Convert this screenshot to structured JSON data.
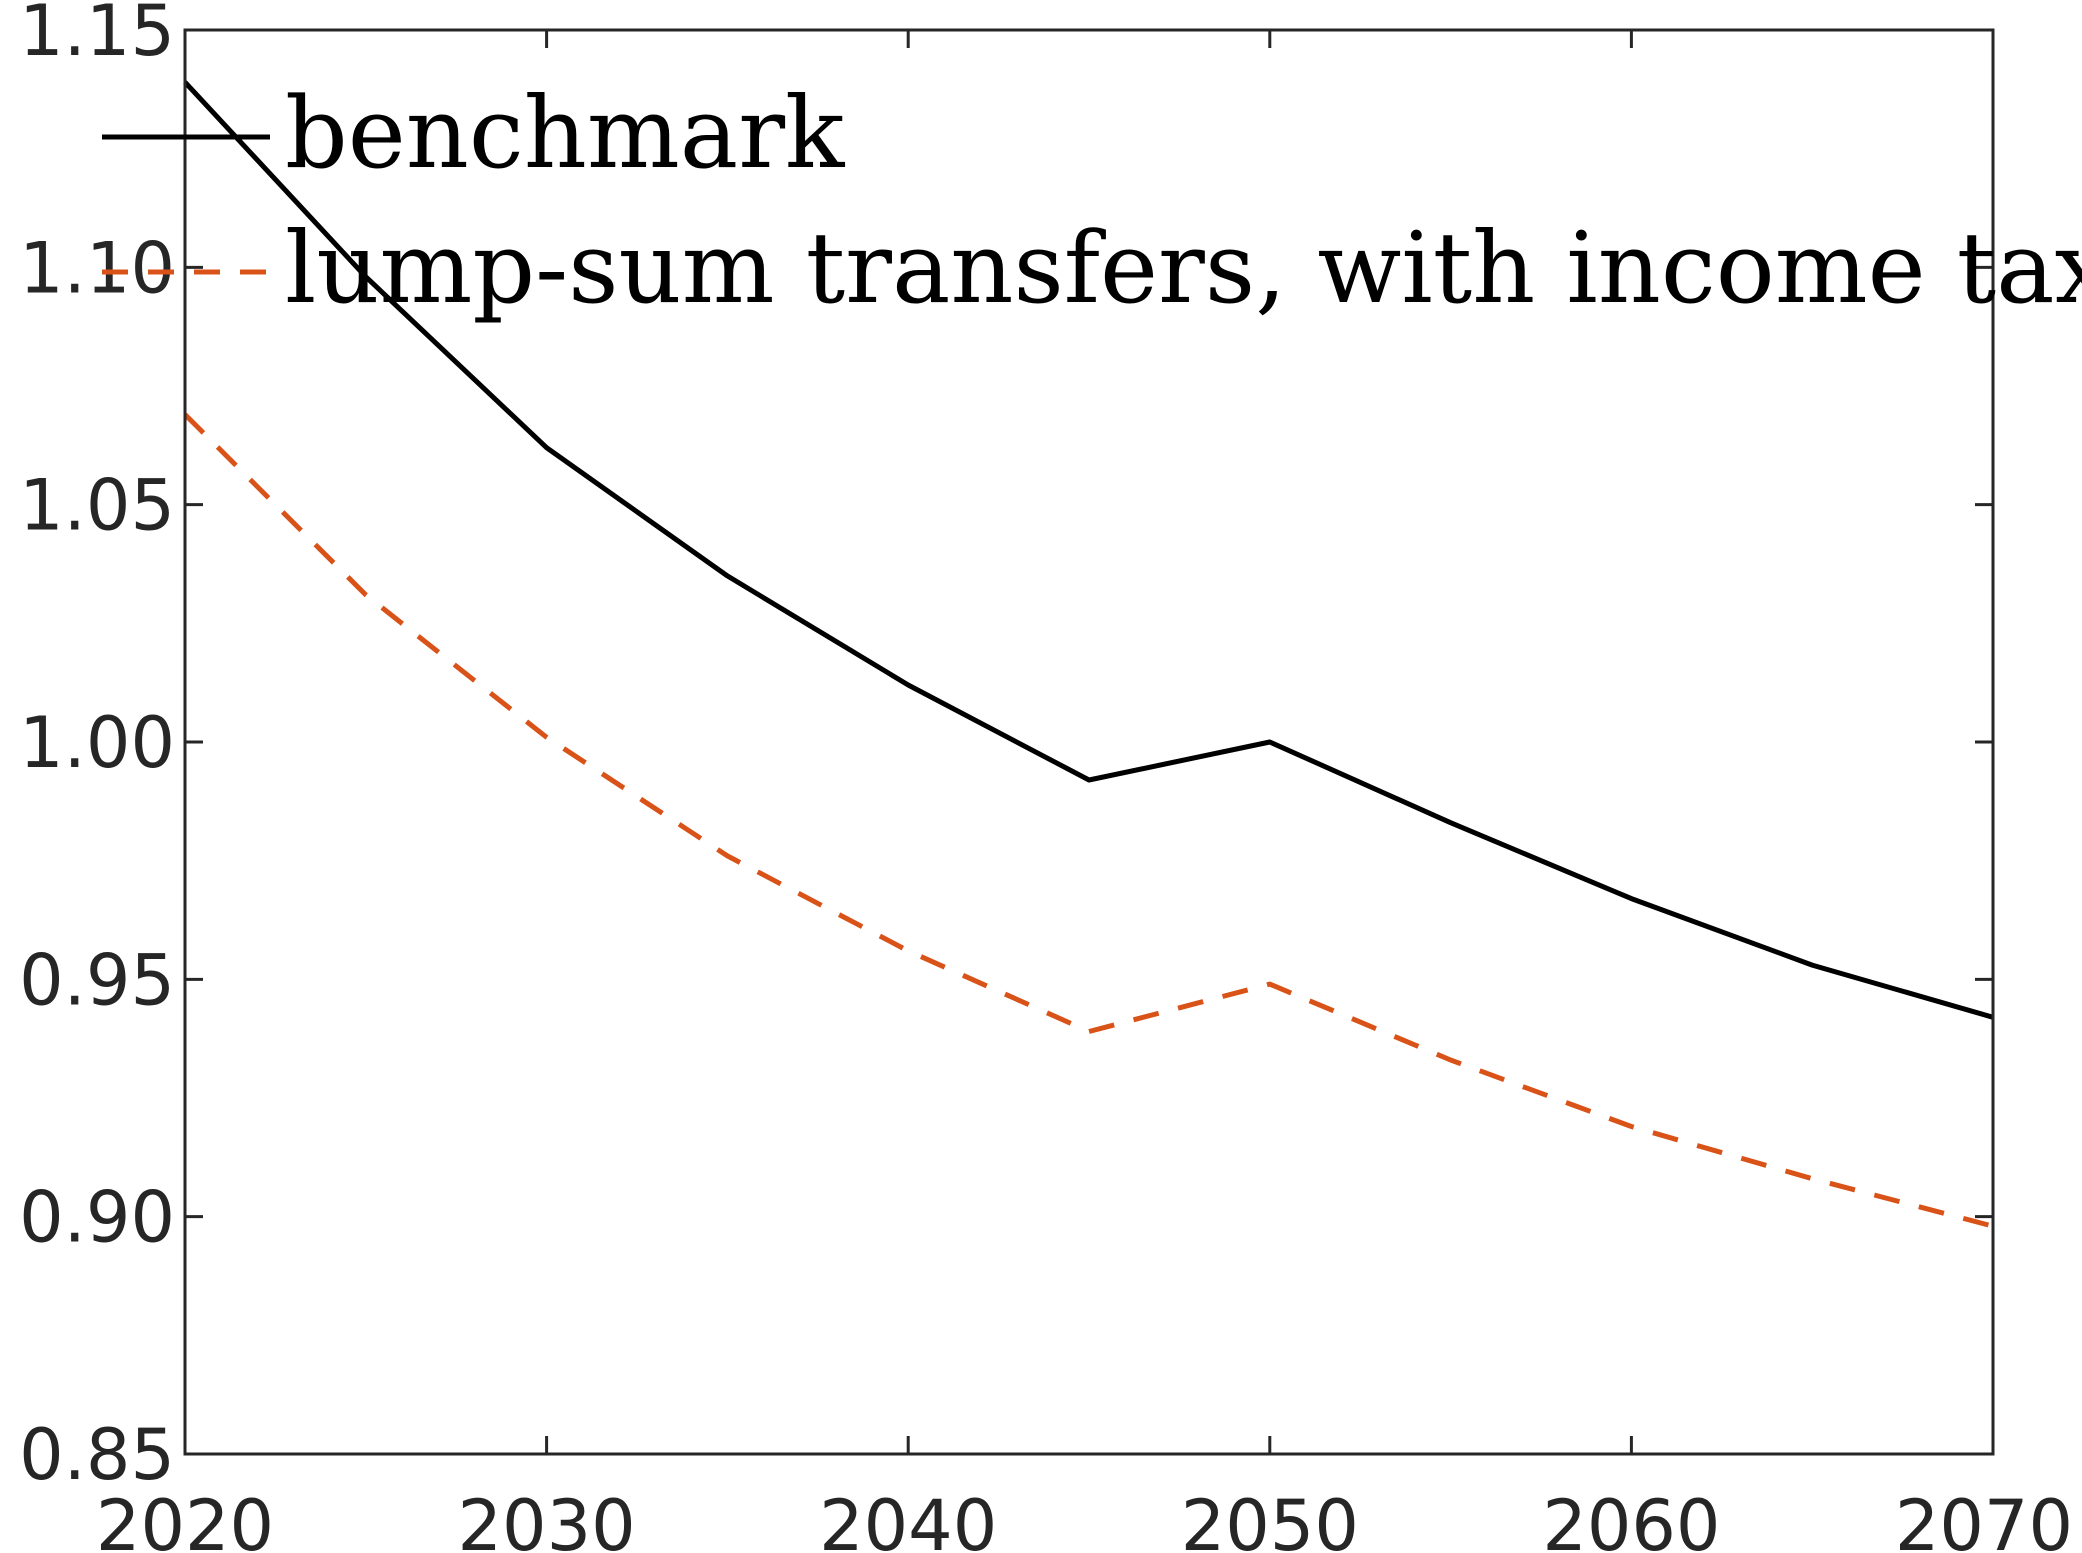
{
  "chart_data": {
    "type": "line",
    "title": "",
    "xlabel": "",
    "ylabel": "",
    "xlim": [
      2020,
      2070
    ],
    "ylim": [
      0.85,
      1.15
    ],
    "grid": false,
    "legend_position": "top-left",
    "x_ticks": [
      2020,
      2030,
      2040,
      2050,
      2060,
      2070
    ],
    "x_tick_labels": [
      "2020",
      "2030",
      "2040",
      "2050",
      "2060",
      "2070"
    ],
    "y_ticks": [
      0.85,
      0.9,
      0.95,
      1.0,
      1.05,
      1.1,
      1.15
    ],
    "y_tick_labels": [
      "0.85",
      "0.90",
      "0.95",
      "1.00",
      "1.05",
      "1.10",
      "1.15"
    ],
    "series": [
      {
        "name": "benchmark",
        "color": "#000000",
        "line_style": "solid",
        "x": [
          2020,
          2025,
          2030,
          2035,
          2040,
          2045,
          2050,
          2055,
          2060,
          2065,
          2070
        ],
        "y": [
          1.139,
          1.098,
          1.062,
          1.035,
          1.012,
          0.992,
          1.0,
          0.983,
          0.967,
          0.953,
          0.942
        ]
      },
      {
        "name": "lump-sum transfers, with income tax",
        "color": "#D95319",
        "line_style": "dashed",
        "x": [
          2020,
          2025,
          2030,
          2035,
          2040,
          2045,
          2050,
          2055,
          2060,
          2065,
          2070
        ],
        "y": [
          1.069,
          1.031,
          1.001,
          0.976,
          0.956,
          0.939,
          0.949,
          0.933,
          0.919,
          0.908,
          0.898
        ]
      }
    ]
  }
}
